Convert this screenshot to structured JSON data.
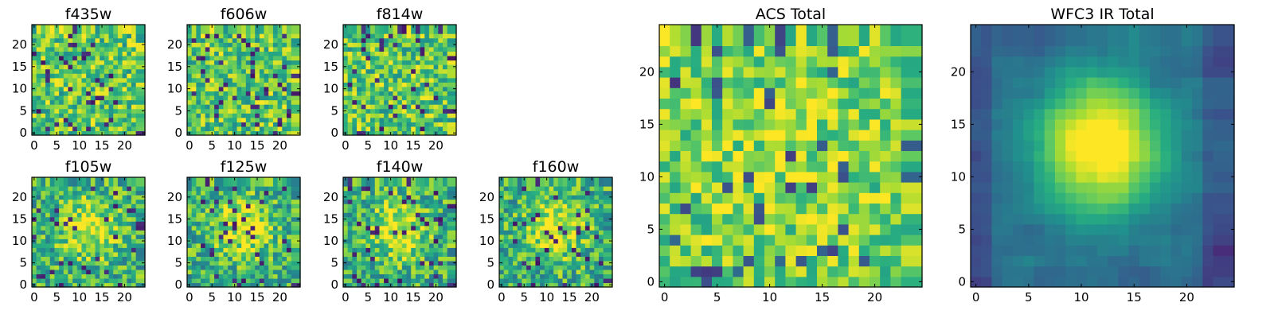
{
  "chart_data": {
    "type": "heatmap",
    "colormap": "viridis",
    "grid": false,
    "legend": "none",
    "panels": [
      {
        "id": "f435w",
        "title": "f435w",
        "rows": 24,
        "cols": 24,
        "xlim": [
          0,
          24
        ],
        "ylim": [
          0,
          24
        ],
        "xticks": [
          0,
          5,
          10,
          15,
          20
        ],
        "yticks": [
          0,
          5,
          10,
          15,
          20
        ],
        "tick_labels_x": [
          "0",
          "5",
          "10",
          "15",
          "20"
        ],
        "tick_labels_y": [
          "0",
          "5",
          "10",
          "15",
          "20"
        ],
        "pattern": "noise",
        "blob_strength": 0.0,
        "seed": 11
      },
      {
        "id": "f606w",
        "title": "f606w",
        "rows": 24,
        "cols": 24,
        "xlim": [
          0,
          24
        ],
        "ylim": [
          0,
          24
        ],
        "xticks": [
          0,
          5,
          10,
          15,
          20
        ],
        "yticks": [
          0,
          5,
          10,
          15,
          20
        ],
        "tick_labels_x": [
          "0",
          "5",
          "10",
          "15",
          "20"
        ],
        "tick_labels_y": [
          "0",
          "5",
          "10",
          "15",
          "20"
        ],
        "pattern": "noise",
        "blob_strength": 0.0,
        "seed": 23
      },
      {
        "id": "f814w",
        "title": "f814w",
        "rows": 24,
        "cols": 24,
        "xlim": [
          0,
          24
        ],
        "ylim": [
          0,
          24
        ],
        "xticks": [
          0,
          5,
          10,
          15,
          20
        ],
        "yticks": [
          0,
          5,
          10,
          15,
          20
        ],
        "tick_labels_x": [
          "0",
          "5",
          "10",
          "15",
          "20"
        ],
        "tick_labels_y": [
          "0",
          "5",
          "10",
          "15",
          "20"
        ],
        "pattern": "noise",
        "blob_strength": 0.0,
        "seed": 37
      },
      {
        "id": "f105w",
        "title": "f105w",
        "rows": 24,
        "cols": 24,
        "xlim": [
          0,
          24
        ],
        "ylim": [
          0,
          24
        ],
        "xticks": [
          0,
          5,
          10,
          15,
          20
        ],
        "yticks": [
          0,
          5,
          10,
          15,
          20
        ],
        "tick_labels_x": [
          "0",
          "5",
          "10",
          "15",
          "20"
        ],
        "tick_labels_y": [
          "0",
          "5",
          "10",
          "15",
          "20"
        ],
        "pattern": "blob",
        "blob_strength": 0.35,
        "seed": 41
      },
      {
        "id": "f125w",
        "title": "f125w",
        "rows": 24,
        "cols": 24,
        "xlim": [
          0,
          24
        ],
        "ylim": [
          0,
          24
        ],
        "xticks": [
          0,
          5,
          10,
          15,
          20
        ],
        "yticks": [
          0,
          5,
          10,
          15,
          20
        ],
        "tick_labels_x": [
          "0",
          "5",
          "10",
          "15",
          "20"
        ],
        "tick_labels_y": [
          "0",
          "5",
          "10",
          "15",
          "20"
        ],
        "pattern": "blob",
        "blob_strength": 0.35,
        "seed": 53
      },
      {
        "id": "f140w",
        "title": "f140w",
        "rows": 24,
        "cols": 24,
        "xlim": [
          0,
          24
        ],
        "ylim": [
          0,
          24
        ],
        "xticks": [
          0,
          5,
          10,
          15,
          20
        ],
        "yticks": [
          0,
          5,
          10,
          15,
          20
        ],
        "tick_labels_x": [
          "0",
          "5",
          "10",
          "15",
          "20"
        ],
        "tick_labels_y": [
          "0",
          "5",
          "10",
          "15",
          "20"
        ],
        "pattern": "blob",
        "blob_strength": 0.35,
        "seed": 67
      },
      {
        "id": "f160w",
        "title": "f160w",
        "rows": 24,
        "cols": 24,
        "xlim": [
          0,
          24
        ],
        "ylim": [
          0,
          24
        ],
        "xticks": [
          0,
          5,
          10,
          15,
          20
        ],
        "yticks": [
          0,
          5,
          10,
          15,
          20
        ],
        "tick_labels_x": [
          "0",
          "5",
          "10",
          "15",
          "20"
        ],
        "tick_labels_y": [
          "0",
          "5",
          "10",
          "15",
          "20"
        ],
        "pattern": "blob",
        "blob_strength": 0.35,
        "seed": 79
      },
      {
        "id": "acs-total",
        "title": "ACS Total",
        "rows": 24,
        "cols": 24,
        "xlim": [
          0,
          24
        ],
        "ylim": [
          0,
          24
        ],
        "xticks": [
          0,
          5,
          10,
          15,
          20
        ],
        "yticks": [
          0,
          5,
          10,
          15,
          20
        ],
        "tick_labels_x": [
          "0",
          "5",
          "10",
          "15",
          "20"
        ],
        "tick_labels_y": [
          "0",
          "5",
          "10",
          "15",
          "20"
        ],
        "pattern": "noise-bright",
        "blob_strength": 0.15,
        "seed": 97
      },
      {
        "id": "wfc3-ir-total",
        "title": "WFC3 IR Total",
        "rows": 24,
        "cols": 24,
        "xlim": [
          0,
          24
        ],
        "ylim": [
          0,
          24
        ],
        "xticks": [
          0,
          5,
          10,
          15,
          20
        ],
        "yticks": [
          0,
          5,
          10,
          15,
          20
        ],
        "tick_labels_x": [
          "0",
          "5",
          "10",
          "15",
          "20"
        ],
        "tick_labels_y": [
          "0",
          "5",
          "10",
          "15",
          "20"
        ],
        "pattern": "smooth-blob",
        "blob_strength": 0.75,
        "seed": 113
      }
    ]
  }
}
